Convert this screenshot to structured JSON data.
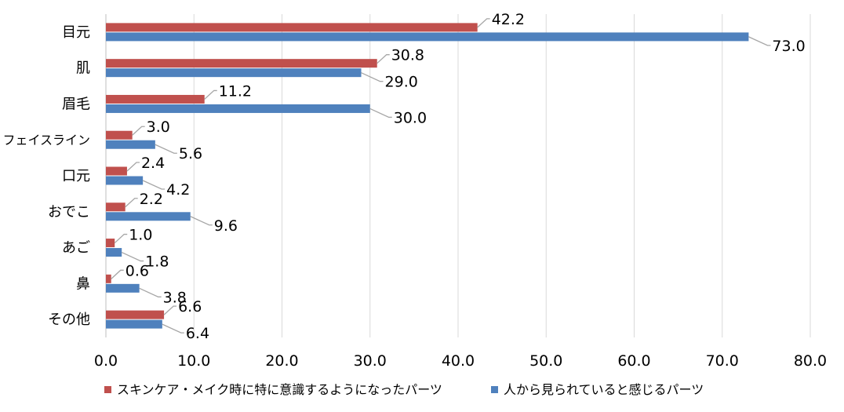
{
  "chart_data": {
    "type": "bar",
    "orientation": "horizontal",
    "categories": [
      "目元",
      "肌",
      "眉毛",
      "フェイスライン",
      "口元",
      "おでこ",
      "あご",
      "鼻",
      "その他"
    ],
    "series": [
      {
        "name": "スキンケア・メイク時に特に意識するようになったパーツ",
        "color": "#C0504D",
        "values": [
          42.2,
          30.8,
          11.2,
          3.0,
          2.4,
          2.2,
          1.0,
          0.6,
          6.6
        ],
        "labels": [
          "42.2",
          "30.8",
          "11.2",
          "3.0",
          "2.4",
          "2.2",
          "1.0",
          "0.6",
          "6.6"
        ]
      },
      {
        "name": "人から見られていると感じるパーツ",
        "color": "#4F81BD",
        "values": [
          73.0,
          29.0,
          30.0,
          5.6,
          4.2,
          9.6,
          1.8,
          3.8,
          6.4
        ],
        "labels": [
          "73.0",
          "29.0",
          "30.0",
          "5.6",
          "4.2",
          "9.6",
          "1.8",
          "3.8",
          "6.4"
        ]
      }
    ],
    "xlim": [
      0,
      80
    ],
    "xticks": [
      "0.0",
      "10.0",
      "20.0",
      "30.0",
      "40.0",
      "50.0",
      "60.0",
      "70.0",
      "80.0"
    ],
    "xtick_values": [
      0,
      10,
      20,
      30,
      40,
      50,
      60,
      70,
      80
    ],
    "grid": "vertical",
    "legend_position": "bottom",
    "title": "",
    "xlabel": "",
    "ylabel": ""
  }
}
